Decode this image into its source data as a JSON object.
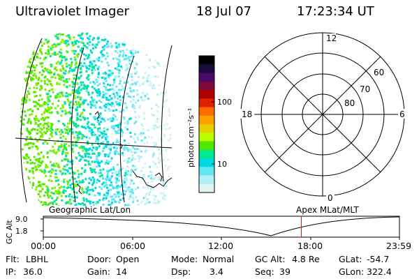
{
  "header": {
    "title": "Ultraviolet Imager",
    "date": "18 Jul 07",
    "time": "17:23:34 UT"
  },
  "left_map": {
    "label": "Geographic Lat/Lon"
  },
  "colorbar": {
    "unit_label": "photon cm⁻²s⁻¹",
    "ticks": [
      "100",
      "10"
    ],
    "colors": [
      "#000000",
      "#1a0a40",
      "#4b0a6a",
      "#7a0a3a",
      "#b00000",
      "#dd2000",
      "#ff6a00",
      "#ffa000",
      "#e8d000",
      "#b8ff00",
      "#50e800",
      "#00e890",
      "#00d8e0",
      "#60e8f0",
      "#b0f0f4",
      "#e0f4f4"
    ]
  },
  "polar": {
    "mlt_labels": {
      "top": "12",
      "left": "18",
      "right": "6",
      "bottom": "0"
    },
    "lat_labels": [
      "60",
      "70",
      "80"
    ],
    "label": "Apex MLat/MLT"
  },
  "timeline": {
    "y_axis_label": "GC Alt",
    "y_ticks": [
      "9.0",
      "1.8"
    ],
    "x_ticks": [
      "00:00",
      "06:00",
      "12:00",
      "18:00",
      "23:59"
    ],
    "marker_time_hours": 17.39
  },
  "info": {
    "row1": [
      {
        "label": "Flt:",
        "value": "LBHL"
      },
      {
        "label": "Door:",
        "value": "Open"
      },
      {
        "label": "Mode:",
        "value": "Normal"
      },
      {
        "label": "GC Alt:",
        "value": "4.8 Re"
      },
      {
        "label": "GLat:",
        "value": "-54.7"
      }
    ],
    "row2": [
      {
        "label": "IP:",
        "value": "36.0"
      },
      {
        "label": "Gain:",
        "value": "14"
      },
      {
        "label": "Dsp:",
        "value": "3.4"
      },
      {
        "label": "Seq:",
        "value": "39"
      },
      {
        "label": "GLon:",
        "value": "322.4"
      }
    ]
  }
}
